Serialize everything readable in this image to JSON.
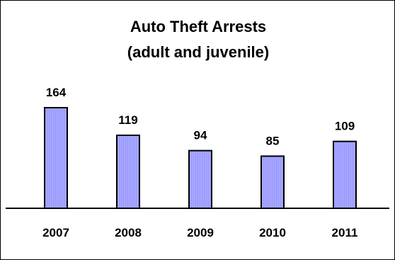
{
  "chart_data": {
    "type": "bar",
    "title": "Auto Theft Arrests",
    "subtitle": "(adult and juvenile)",
    "categories": [
      "2007",
      "2008",
      "2009",
      "2010",
      "2011"
    ],
    "values": [
      164,
      119,
      94,
      85,
      109
    ],
    "ylim": [
      0,
      180
    ],
    "grid": false,
    "legend": "none",
    "data_labels": true,
    "colors": {
      "bar_fill": "#9999ff",
      "bar_stroke": "#000000",
      "text": "#000000"
    }
  }
}
